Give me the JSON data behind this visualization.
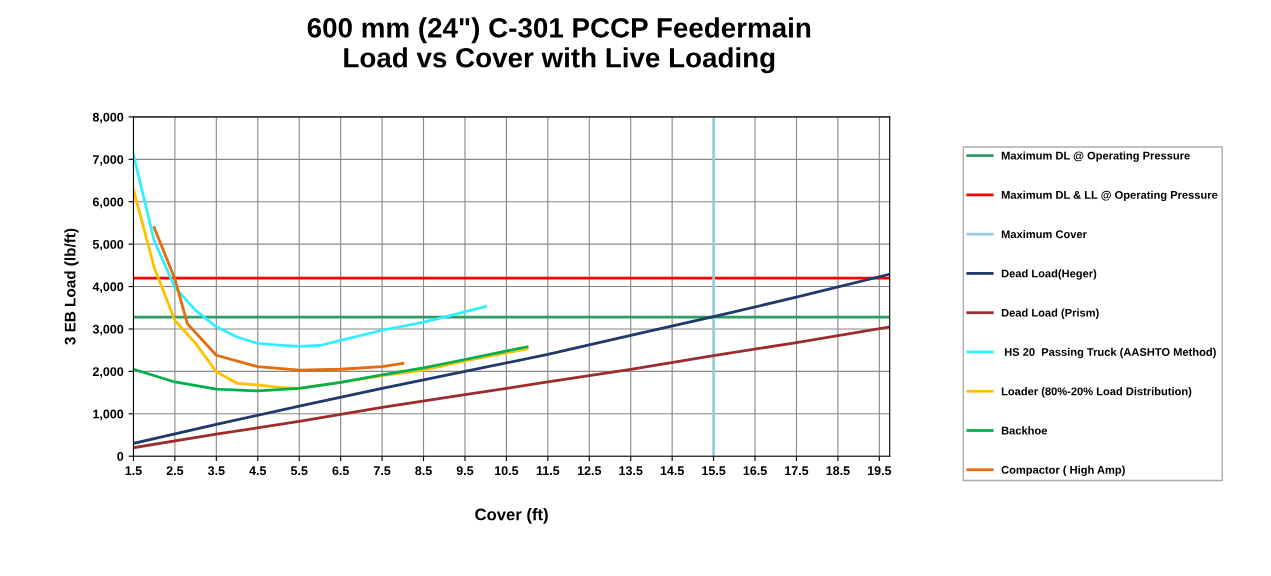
{
  "chart_data": {
    "type": "line",
    "title": "600 mm (24\") C-301 PCCP Feedermain\nLoad vs Cover with Live Loading",
    "xlabel": "Cover (ft)",
    "ylabel": "3 EB Load (lb/ft)",
    "xlim": [
      1.5,
      19.75
    ],
    "xticks": [
      1.5,
      2.5,
      3.5,
      4.5,
      5.5,
      6.5,
      7.5,
      8.5,
      9.5,
      10.5,
      11.5,
      12.5,
      13.5,
      14.5,
      15.5,
      16.5,
      17.5,
      18.5,
      19.5
    ],
    "ylim": [
      0,
      8000
    ],
    "yticks": [
      {
        "value": 0,
        "label": "0"
      },
      {
        "value": 1000,
        "label": "1,000"
      },
      {
        "value": 2000,
        "label": "2,000"
      },
      {
        "value": 3000,
        "label": "3,000"
      },
      {
        "value": 4000,
        "label": "4,000"
      },
      {
        "value": 5000,
        "label": "5,000"
      },
      {
        "value": 6000,
        "label": "6,000"
      },
      {
        "value": 7000,
        "label": "7,000"
      },
      {
        "value": 8000,
        "label": "8,000"
      }
    ],
    "grid": true,
    "legend": "right",
    "marker": "none",
    "line_style": "solid",
    "series": [
      {
        "name": "Maximum DL @ Operating Pressure",
        "color": "#339966",
        "x": [
          1.5,
          19.75
        ],
        "values": [
          3280,
          3280
        ]
      },
      {
        "name": "Maximum DL & LL @ Operating Pressure",
        "color": "#ff0000",
        "x": [
          1.5,
          19.75
        ],
        "values": [
          4200,
          4200
        ]
      },
      {
        "name": "Maximum Cover",
        "color": "#99cce0",
        "x": [
          15.5,
          15.5
        ],
        "values": [
          0,
          8000
        ]
      },
      {
        "name": "Dead Load(Heger)",
        "color": "#1f3a6b",
        "x": [
          1.5,
          3.5,
          5.5,
          7.5,
          9.5,
          11.5,
          13.5,
          15.5,
          17.5,
          19.75
        ],
        "values": [
          300,
          750,
          1180,
          1600,
          2000,
          2400,
          2850,
          3290,
          3750,
          4290
        ]
      },
      {
        "name": "Dead Load (Prism)",
        "color": "#9b2d2d",
        "x": [
          1.5,
          3.5,
          5.5,
          7.5,
          9.5,
          11.5,
          13.5,
          15.5,
          17.5,
          19.75
        ],
        "values": [
          200,
          520,
          820,
          1150,
          1450,
          1750,
          2050,
          2370,
          2680,
          3050
        ]
      },
      {
        "name": " HS 20  Passing Truck (AASHTO Method)",
        "color": "#33eeff",
        "x": [
          1.5,
          2.0,
          2.5,
          3.0,
          3.5,
          4.0,
          4.5,
          5.0,
          5.5,
          6.0,
          6.5,
          7.5,
          8.5,
          9.0,
          10.0
        ],
        "values": [
          7110,
          5080,
          3980,
          3440,
          3050,
          2810,
          2660,
          2620,
          2590,
          2610,
          2730,
          2970,
          3160,
          3280,
          3530
        ]
      },
      {
        "name": "Loader (80%-20% Load Distribution)",
        "color": "#ffc000",
        "x": [
          1.5,
          2.0,
          2.5,
          3.0,
          3.5,
          4.0,
          4.5,
          5.0,
          5.5,
          6.5,
          7.5,
          8.5,
          9.5,
          11.0
        ],
        "values": [
          6290,
          4450,
          3200,
          2660,
          1990,
          1720,
          1680,
          1625,
          1600,
          1740,
          1900,
          2030,
          2250,
          2530
        ]
      },
      {
        "name": "Backhoe",
        "color": "#00b050",
        "x": [
          1.5,
          2.5,
          3.5,
          4.5,
          5.5,
          6.5,
          7.5,
          8.5,
          9.5,
          11.0
        ],
        "values": [
          2050,
          1750,
          1580,
          1540,
          1600,
          1740,
          1920,
          2080,
          2280,
          2580
        ]
      },
      {
        "name": "Compactor ( High Amp)",
        "color": "#e46c0a",
        "x": [
          2.0,
          2.5,
          2.8,
          3.5,
          4.5,
          5.5,
          6.5,
          7.5,
          8.0
        ],
        "values": [
          5390,
          4180,
          3125,
          2380,
          2110,
          2030,
          2050,
          2110,
          2190
        ]
      }
    ]
  }
}
